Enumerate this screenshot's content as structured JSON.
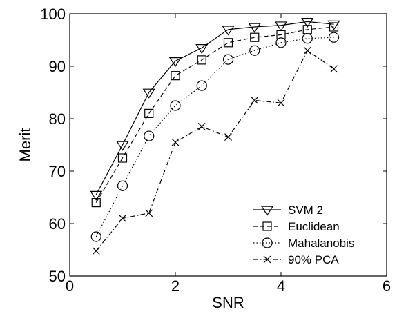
{
  "chart_data": {
    "type": "line",
    "xlabel": "SNR",
    "ylabel": "Merit",
    "xlim": [
      0,
      6
    ],
    "ylim": [
      50,
      100
    ],
    "xticks": [
      0,
      2,
      4,
      6
    ],
    "yticks": [
      50,
      60,
      70,
      80,
      90,
      100
    ],
    "grid": false,
    "legend_position": "bottom-right",
    "x": [
      0.5,
      1.0,
      1.5,
      2.0,
      2.5,
      3.0,
      3.5,
      4.0,
      4.5,
      5.0
    ],
    "series": [
      {
        "name": "SVM 2",
        "marker": "triangle-down",
        "line": "solid",
        "values": [
          65.5,
          75.0,
          85.0,
          91.0,
          93.5,
          97.0,
          97.5,
          97.8,
          98.5,
          98.0
        ]
      },
      {
        "name": "Euclidean",
        "marker": "square",
        "line": "dashed",
        "values": [
          64.0,
          72.5,
          81.0,
          88.2,
          91.2,
          94.5,
          95.5,
          96.0,
          97.0,
          97.5
        ]
      },
      {
        "name": "Mahalanobis",
        "marker": "circle",
        "line": "dotted",
        "values": [
          57.5,
          67.2,
          76.7,
          82.5,
          86.3,
          91.3,
          93.0,
          94.5,
          95.3,
          95.5
        ]
      },
      {
        "name": "90% PCA",
        "marker": "x",
        "line": "dashdot",
        "values": [
          54.8,
          61.0,
          62.0,
          75.5,
          78.5,
          76.5,
          83.5,
          83.0,
          93.0,
          89.5
        ]
      }
    ]
  }
}
